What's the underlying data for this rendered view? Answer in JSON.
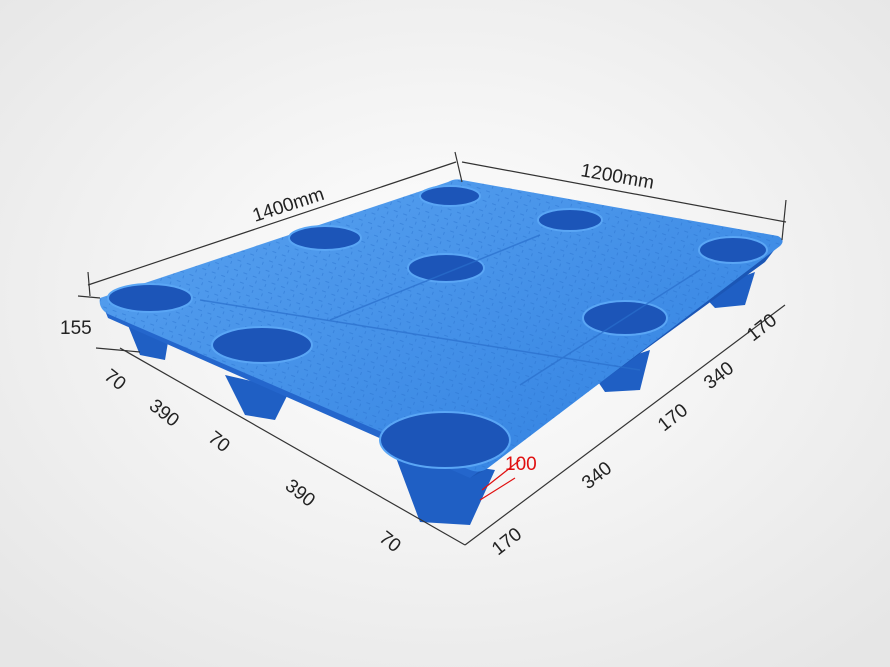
{
  "dimensions": {
    "length": "1400mm",
    "width": "1200mm",
    "height": "155",
    "left_side": [
      "70",
      "390",
      "70",
      "390",
      "70"
    ],
    "right_side": [
      "170",
      "340",
      "170",
      "340",
      "170"
    ],
    "foot_depth": "100"
  },
  "colors": {
    "pallet_top": "#3d8ee8",
    "pallet_side": "#1f5fc4",
    "hole": "#1c55b8",
    "highlight": "#e01010",
    "background": "#f0f0f0"
  }
}
